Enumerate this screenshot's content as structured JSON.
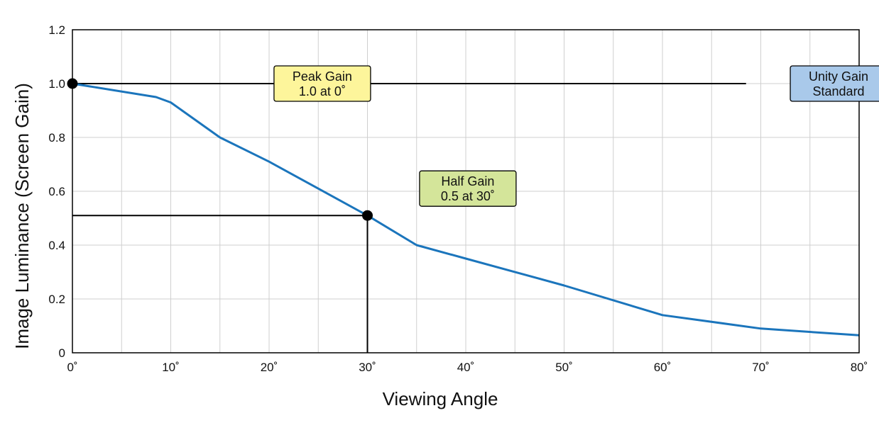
{
  "colors": {
    "curve": "#1b75bc",
    "grid": "#cfcfcf",
    "axis": "#000000",
    "peak_box": "#fdf59b",
    "half_box": "#d4e59a",
    "unity_box": "#a9c9ea"
  },
  "chart_data": {
    "type": "line",
    "title": "",
    "xlabel": "Viewing Angle",
    "ylabel": "Image Luminance (Screen Gain)",
    "xlim": [
      0,
      80
    ],
    "ylim": [
      0,
      1.2
    ],
    "x_ticks": [
      0,
      10,
      20,
      30,
      40,
      50,
      60,
      70,
      80
    ],
    "x_tick_labels": [
      "0˚",
      "10˚",
      "20˚",
      "30˚",
      "40˚",
      "50˚",
      "60˚",
      "70˚",
      "80˚"
    ],
    "y_ticks": [
      0,
      0.2,
      0.4,
      0.6,
      0.8,
      1.0,
      1.2
    ],
    "y_tick_labels": [
      "0",
      "0.2",
      "0.4",
      "0.6",
      "0.8",
      "1.0",
      "1.2"
    ],
    "grid": true,
    "x_grid_step": 5,
    "y_grid_step": 0.2,
    "series": [
      {
        "x": [
          0,
          8.5,
          10,
          15,
          20,
          25,
          30,
          35,
          40,
          50,
          60,
          70,
          80
        ],
        "y": [
          1.0,
          0.95,
          0.93,
          0.8,
          0.71,
          0.61,
          0.51,
          0.4,
          0.35,
          0.25,
          0.14,
          0.09,
          0.065
        ]
      }
    ],
    "reference_lines": [
      {
        "kind": "horizontal",
        "y": 1.0,
        "x_from": 0,
        "x_to": 68.5
      },
      {
        "kind": "horizontal",
        "y": 0.51,
        "x_from": 0,
        "x_to": 30
      },
      {
        "kind": "vertical",
        "x": 30,
        "y_from": 0,
        "y_to": 0.51
      }
    ],
    "markers": [
      {
        "x": 0,
        "y": 1.0
      },
      {
        "x": 30,
        "y": 0.51
      }
    ],
    "annotations": [
      {
        "id": "peak",
        "lines": [
          "Peak Gain",
          "1.0 at 0˚"
        ],
        "x": 20.5,
        "y": 1.0,
        "fill_key": "peak_box"
      },
      {
        "id": "half",
        "lines": [
          "Half Gain",
          "0.5 at 30˚"
        ],
        "x": 35.3,
        "y": 0.61,
        "fill_key": "half_box"
      },
      {
        "id": "unity",
        "lines": [
          "Unity Gain",
          "Standard"
        ],
        "x": 73,
        "y": 1.0,
        "fill_key": "unity_box"
      }
    ]
  }
}
